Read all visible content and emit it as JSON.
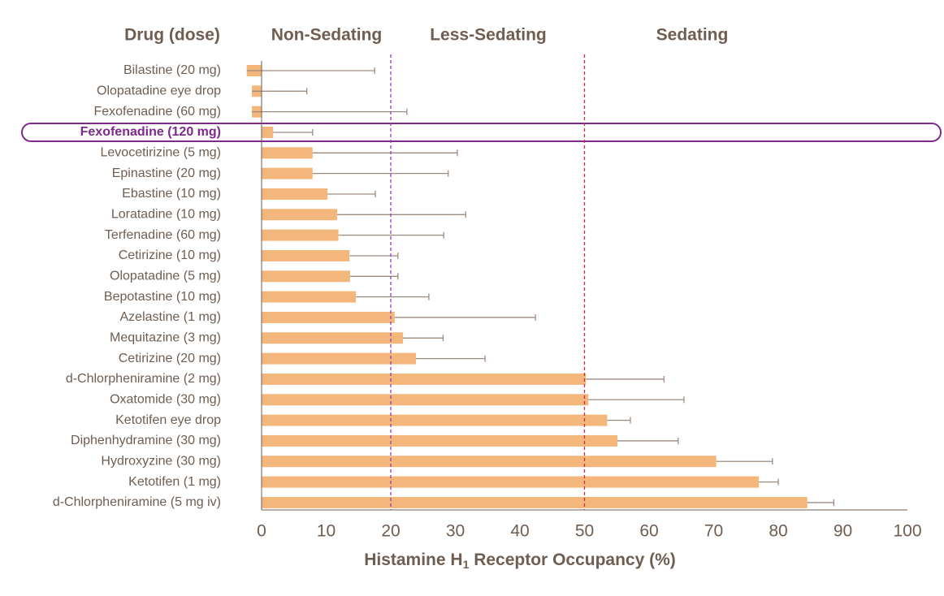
{
  "chart_data": {
    "type": "bar",
    "orientation": "horizontal",
    "category_header": "Drug (dose)",
    "zones": [
      "Non-Sedating",
      "Less-Sedating",
      "Sedating"
    ],
    "reference_lines": [
      {
        "value": 20,
        "color": "#8e3db3"
      },
      {
        "value": 50,
        "color": "#d3283c"
      }
    ],
    "x_label": {
      "text": "Histamine H",
      "subscript": "1",
      "suffix": " Receptor Occupancy (%)"
    },
    "categories": [
      "Bilastine (20 mg)",
      "Olopatadine eye drop",
      "Fexofenadine (60 mg)",
      "Fexofenadine (120 mg)",
      "Levocetirizine (5 mg)",
      "Epinastine (20 mg)",
      "Ebastine (10 mg)",
      "Loratadine (10 mg)",
      "Terfenadine (60 mg)",
      "Cetirizine (10 mg)",
      "Olopatadine (5 mg)",
      "Bepotastine (10 mg)",
      "Azelastine (1 mg)",
      "Mequitazine (3 mg)",
      "Cetirizine (20 mg)",
      "d-Chlorpheniramine (2 mg)",
      "Oxatomide (30 mg)",
      "Ketotifen eye drop",
      "Diphenhydramine (30 mg)",
      "Hydroxyzine (30 mg)",
      "Ketotifen (1 mg)",
      "d-Chlorpheniramine (5 mg iv)"
    ],
    "values": [
      -2.3,
      -1.5,
      -1.5,
      1.8,
      7.9,
      7.9,
      10.2,
      11.7,
      11.9,
      13.6,
      13.7,
      14.6,
      20.6,
      21.9,
      23.9,
      50.2,
      50.6,
      53.5,
      55.1,
      70.4,
      77,
      84.5
    ],
    "errors": [
      19.8,
      8.5,
      24,
      6.1,
      22.4,
      21,
      7.4,
      19.9,
      16.3,
      7.5,
      7.4,
      11.3,
      21.8,
      6.2,
      10.7,
      12.1,
      14.8,
      3.6,
      9.4,
      8.7,
      3,
      4.1
    ],
    "color": "#f3b77b",
    "error_color": "#9d8b80",
    "highlight": 3,
    "highlight_color": "#7d2a8c",
    "xlim": [
      0,
      100
    ],
    "xticks": [
      0,
      10,
      20,
      30,
      40,
      50,
      60,
      70,
      80,
      90,
      100
    ]
  }
}
